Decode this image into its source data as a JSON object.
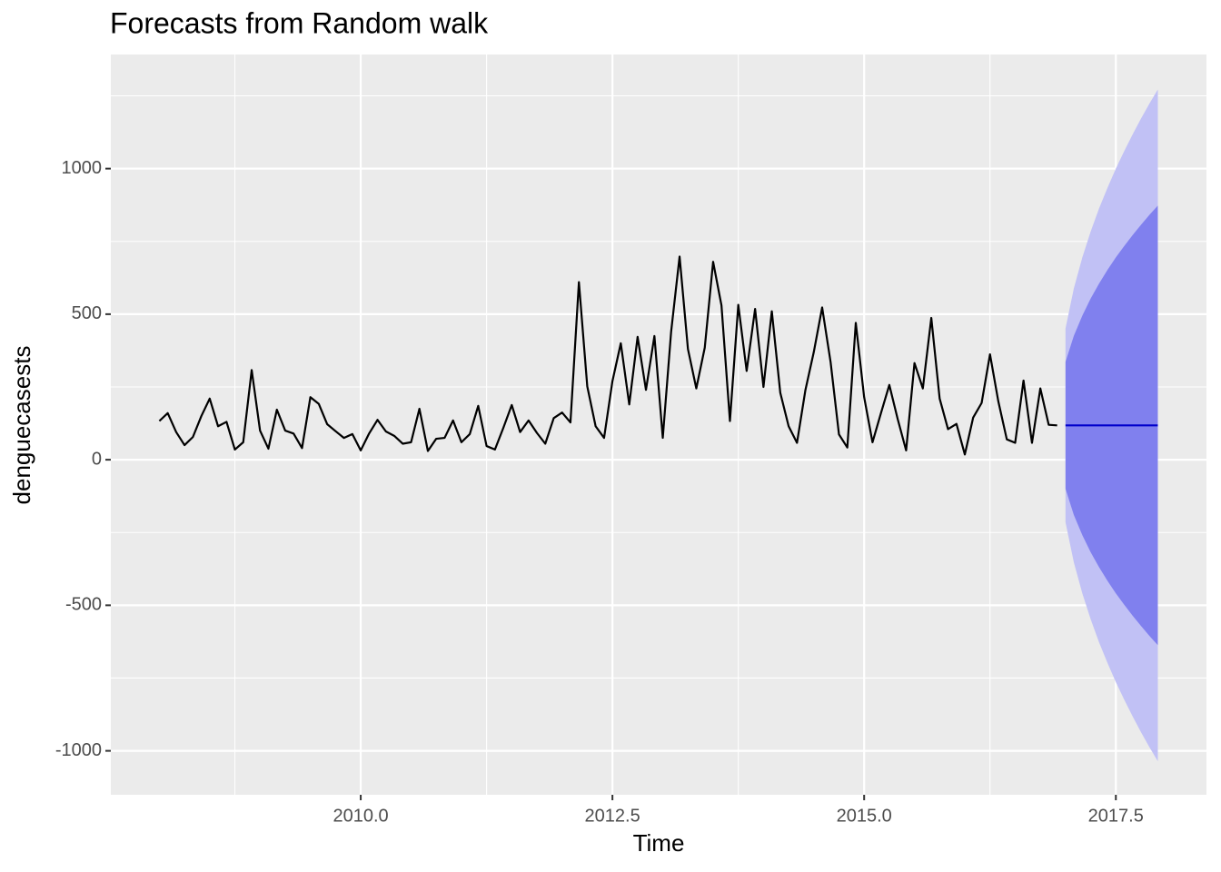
{
  "chart_data": {
    "type": "line",
    "title": "Forecasts from Random walk",
    "xlabel": "Time",
    "ylabel": "denguecasests",
    "xlim": [
      2007.518,
      2018.4
    ],
    "ylim": [
      -1151,
      1392
    ],
    "xticks": [
      {
        "value": 2010,
        "label": "2010.0"
      },
      {
        "value": 2012.5,
        "label": "2012.5"
      },
      {
        "value": 2015,
        "label": "2015.0"
      },
      {
        "value": 2017.5,
        "label": "2017.5"
      }
    ],
    "yticks": [
      -1000,
      -500,
      0,
      500,
      1000
    ],
    "xminor": [
      2008.75,
      2011.25,
      2013.75,
      2016.25
    ],
    "yminor": [
      -750,
      -250,
      250,
      750,
      1250
    ],
    "grid": true,
    "series": [
      {
        "color": "#000000",
        "x": [
          2008.0,
          2008.083,
          2008.167,
          2008.25,
          2008.333,
          2008.417,
          2008.5,
          2008.583,
          2008.667,
          2008.75,
          2008.833,
          2008.917,
          2009.0,
          2009.083,
          2009.167,
          2009.25,
          2009.333,
          2009.417,
          2009.5,
          2009.583,
          2009.667,
          2009.75,
          2009.833,
          2009.917,
          2010.0,
          2010.083,
          2010.167,
          2010.25,
          2010.333,
          2010.417,
          2010.5,
          2010.583,
          2010.667,
          2010.75,
          2010.833,
          2010.917,
          2011.0,
          2011.083,
          2011.167,
          2011.25,
          2011.333,
          2011.417,
          2011.5,
          2011.583,
          2011.667,
          2011.75,
          2011.833,
          2011.917,
          2012.0,
          2012.083,
          2012.167,
          2012.25,
          2012.333,
          2012.417,
          2012.5,
          2012.583,
          2012.667,
          2012.75,
          2012.833,
          2012.917,
          2013.0,
          2013.083,
          2013.167,
          2013.25,
          2013.333,
          2013.417,
          2013.5,
          2013.583,
          2013.667,
          2013.75,
          2013.833,
          2013.917,
          2014.0,
          2014.083,
          2014.167,
          2014.25,
          2014.333,
          2014.417,
          2014.5,
          2014.583,
          2014.667,
          2014.75,
          2014.833,
          2014.917,
          2015.0,
          2015.083,
          2015.167,
          2015.25,
          2015.333,
          2015.417,
          2015.5,
          2015.583,
          2015.667,
          2015.75,
          2015.833,
          2015.917,
          2016.0,
          2016.083,
          2016.167,
          2016.25,
          2016.333,
          2016.417,
          2016.5,
          2016.583,
          2016.667,
          2016.75,
          2016.833,
          2016.917
        ],
        "values": [
          133,
          160,
          95,
          50,
          78,
          150,
          210,
          115,
          130,
          35,
          60,
          308,
          100,
          38,
          172,
          100,
          90,
          40,
          215,
          192,
          122,
          98,
          75,
          88,
          32,
          90,
          137,
          97,
          82,
          55,
          60,
          175,
          30,
          72,
          75,
          135,
          60,
          88,
          185,
          47,
          35,
          110,
          188,
          95,
          135,
          92,
          55,
          143,
          162,
          128,
          610,
          252,
          115,
          75,
          270,
          400,
          190,
          422,
          240,
          425,
          75,
          440,
          698,
          380,
          245,
          385,
          680,
          530,
          133,
          532,
          305,
          518,
          250,
          510,
          230,
          115,
          58,
          240,
          370,
          523,
          335,
          87,
          42,
          470,
          215,
          60,
          160,
          257,
          140,
          32,
          332,
          245,
          487,
          210,
          105,
          123,
          18,
          145,
          195,
          362,
          200,
          70,
          58,
          272,
          58,
          245,
          120,
          118
        ]
      },
      {
        "color": "#0000cc",
        "x": [
          2017.0,
          2017.083,
          2017.167,
          2017.25,
          2017.333,
          2017.417,
          2017.5,
          2017.583,
          2017.667,
          2017.75,
          2017.833,
          2017.917
        ],
        "values": [
          118,
          118,
          118,
          118,
          118,
          118,
          118,
          118,
          118,
          118,
          118,
          118
        ],
        "lower80": [
          -100,
          -190,
          -259,
          -318,
          -369,
          -416,
          -459,
          -498,
          -536,
          -571,
          -605,
          -637
        ],
        "upper80": [
          336,
          426,
          495,
          554,
          605,
          652,
          695,
          734,
          772,
          807,
          841,
          873
        ],
        "lower95": [
          -215,
          -353,
          -459,
          -548,
          -627,
          -698,
          -764,
          -824,
          -882,
          -936,
          -987,
          -1036
        ],
        "upper95": [
          451,
          589,
          695,
          784,
          863,
          934,
          1000,
          1060,
          1118,
          1172,
          1223,
          1272
        ],
        "color80": "#8080ee",
        "color95": "#c1c1f5"
      }
    ]
  }
}
